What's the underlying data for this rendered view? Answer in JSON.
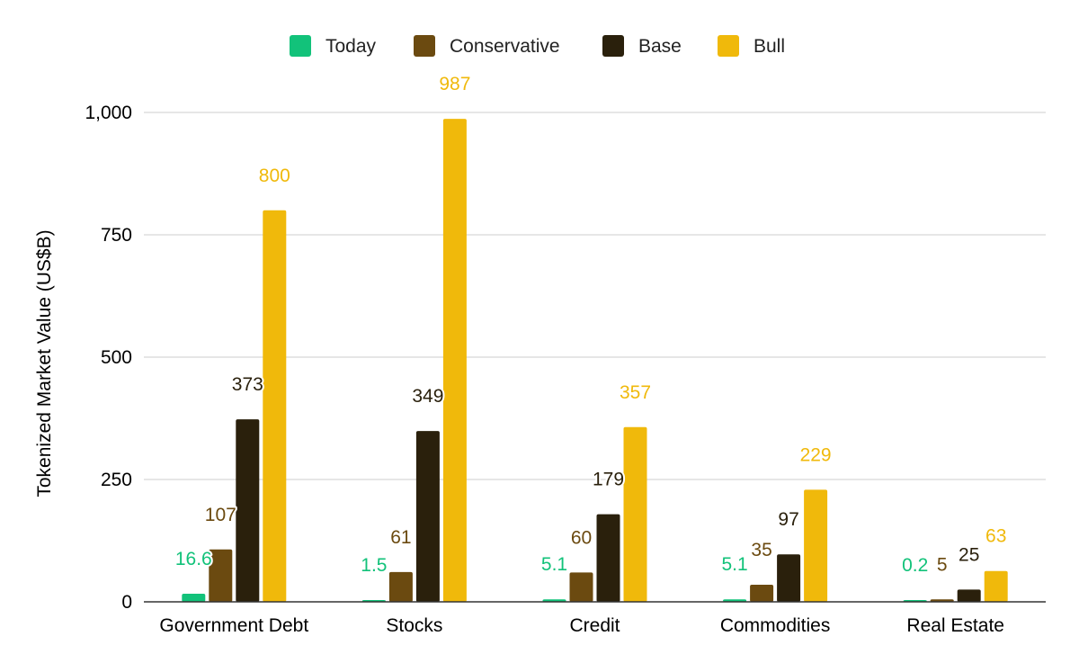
{
  "chart_data": {
    "type": "bar",
    "categories": [
      "Government Debt",
      "Stocks",
      "Credit",
      "Commodities",
      "Real Estate"
    ],
    "series": [
      {
        "name": "Today",
        "color": "#12c27a",
        "values": [
          16.6,
          1.5,
          5.1,
          5.1,
          0.2
        ],
        "labels": [
          "16.6",
          "1.5",
          "5.1",
          "5.1",
          "0.2"
        ]
      },
      {
        "name": "Conservative",
        "color": "#6b4a10",
        "values": [
          107,
          61,
          60,
          35,
          5
        ],
        "labels": [
          "107",
          "61",
          "60",
          "35",
          "5"
        ]
      },
      {
        "name": "Base",
        "color": "#2a200c",
        "values": [
          373,
          349,
          179,
          97,
          25
        ],
        "labels": [
          "373",
          "349",
          "179",
          "97",
          "25"
        ]
      },
      {
        "name": "Bull",
        "color": "#f0b90b",
        "values": [
          800,
          987,
          357,
          229,
          63
        ],
        "labels": [
          "800",
          "987",
          "357",
          "229",
          "63"
        ]
      }
    ],
    "title": "",
    "xlabel": "",
    "ylabel": "Tokenized Market Value (US$B)",
    "ylim": [
      0,
      1000
    ],
    "yticks": [
      {
        "value": 0,
        "label": "0"
      },
      {
        "value": 250,
        "label": "250"
      },
      {
        "value": 500,
        "label": "500"
      },
      {
        "value": 750,
        "label": "750"
      },
      {
        "value": 1000,
        "label": "1,000"
      }
    ],
    "grid": true,
    "legend_position": "top-center"
  }
}
